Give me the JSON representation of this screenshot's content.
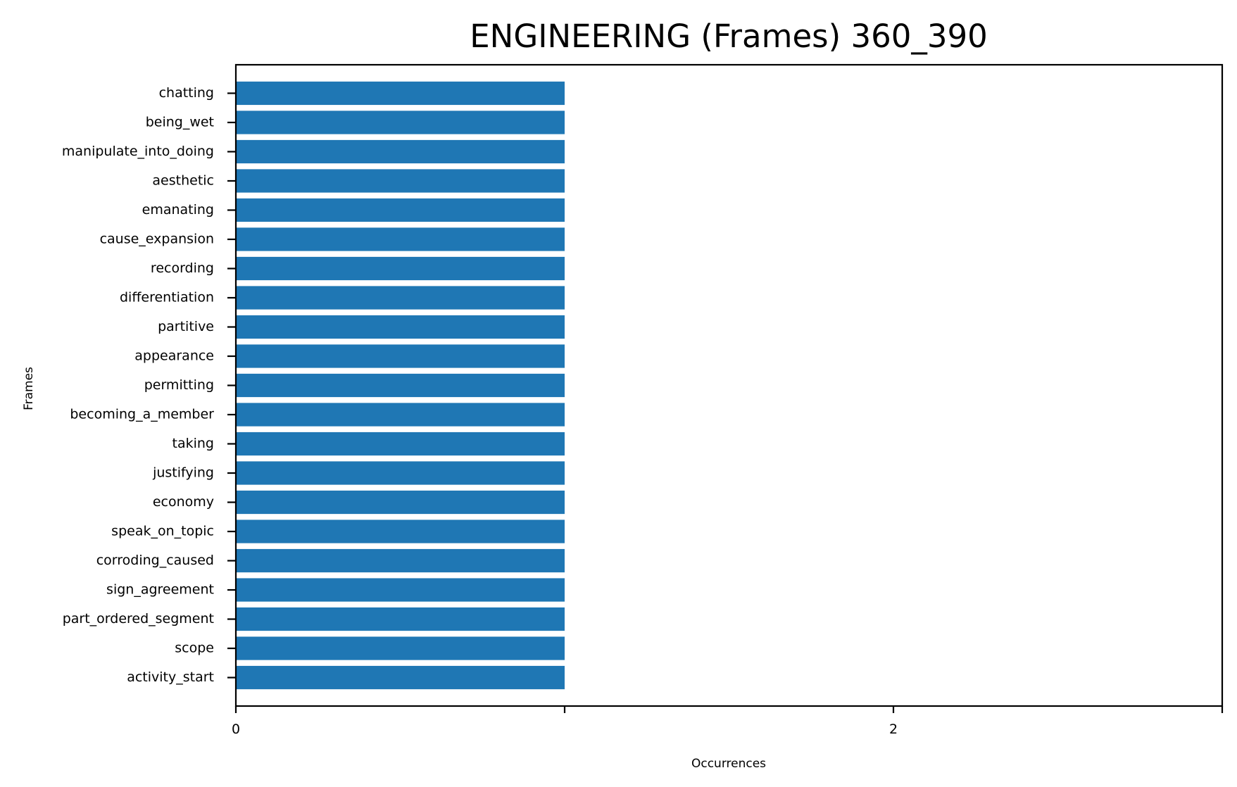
{
  "chart_data": {
    "type": "bar",
    "orientation": "horizontal",
    "title": "ENGINEERING (Frames) 360_390",
    "xlabel": "Occurrences",
    "ylabel": "Frames",
    "categories": [
      "chatting",
      "being_wet",
      "manipulate_into_doing",
      "aesthetic",
      "emanating",
      "cause_expansion",
      "recording",
      "differentiation",
      "partitive",
      "appearance",
      "permitting",
      "becoming_a_member",
      "taking",
      "justifying",
      "economy",
      "speak_on_topic",
      "corroding_caused",
      "sign_agreement",
      "part_ordered_segment",
      "scope",
      "activity_start"
    ],
    "values": [
      1,
      1,
      1,
      1,
      1,
      1,
      1,
      1,
      1,
      1,
      1,
      1,
      1,
      1,
      1,
      1,
      1,
      1,
      1,
      1,
      1
    ],
    "xlim": [
      0,
      3
    ],
    "xticks": [
      0,
      1,
      2,
      3
    ],
    "xtick_labels": [
      "0",
      "",
      "2",
      ""
    ],
    "grid": false,
    "legend": "none",
    "colors": {
      "bar": "#1f77b4",
      "axis": "#000000",
      "background": "#ffffff"
    }
  }
}
